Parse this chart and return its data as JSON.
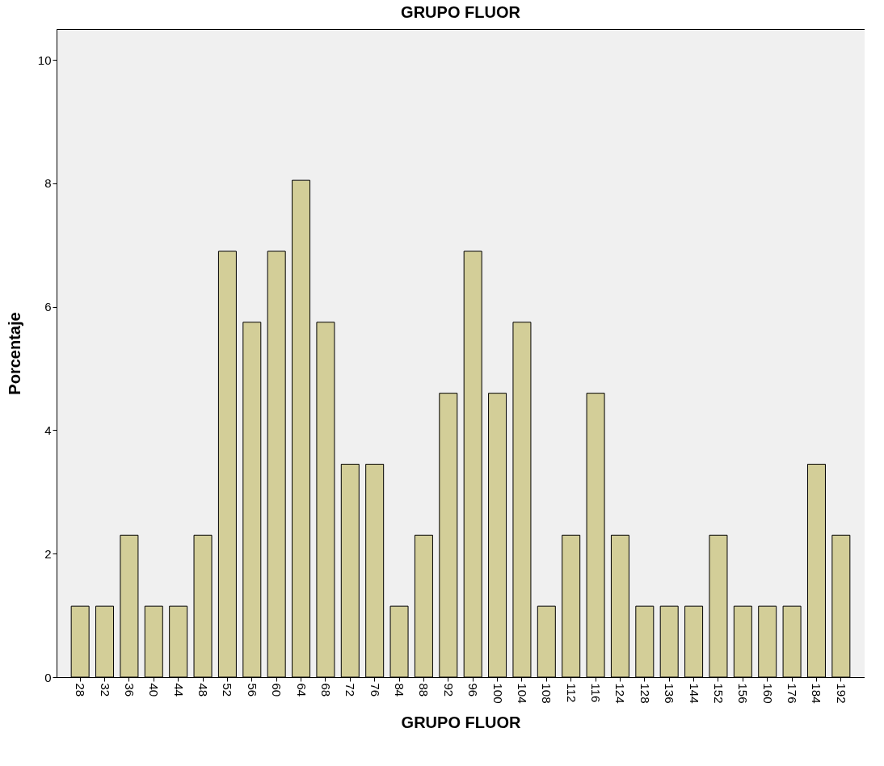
{
  "chart_data": {
    "type": "bar",
    "title": "GRUPO FLUOR",
    "xlabel": "GRUPO FLUOR",
    "ylabel": "Porcentaje",
    "categories": [
      "28",
      "32",
      "36",
      "40",
      "44",
      "48",
      "52",
      "56",
      "60",
      "64",
      "68",
      "72",
      "76",
      "84",
      "88",
      "92",
      "96",
      "100",
      "104",
      "108",
      "112",
      "116",
      "124",
      "128",
      "136",
      "144",
      "152",
      "156",
      "160",
      "176",
      "184",
      "192"
    ],
    "values": [
      1.15,
      1.15,
      2.3,
      1.15,
      1.15,
      2.3,
      6.9,
      5.75,
      6.9,
      8.05,
      5.75,
      3.45,
      3.45,
      1.15,
      2.3,
      4.6,
      6.9,
      4.6,
      5.75,
      1.15,
      2.3,
      4.6,
      2.3,
      1.15,
      1.15,
      1.15,
      2.3,
      1.15,
      1.15,
      1.15,
      3.45,
      2.3
    ],
    "color": "#d3ce98",
    "ylim": [
      0,
      10.5
    ],
    "yticks": [
      0,
      2,
      4,
      6,
      8,
      10
    ]
  }
}
